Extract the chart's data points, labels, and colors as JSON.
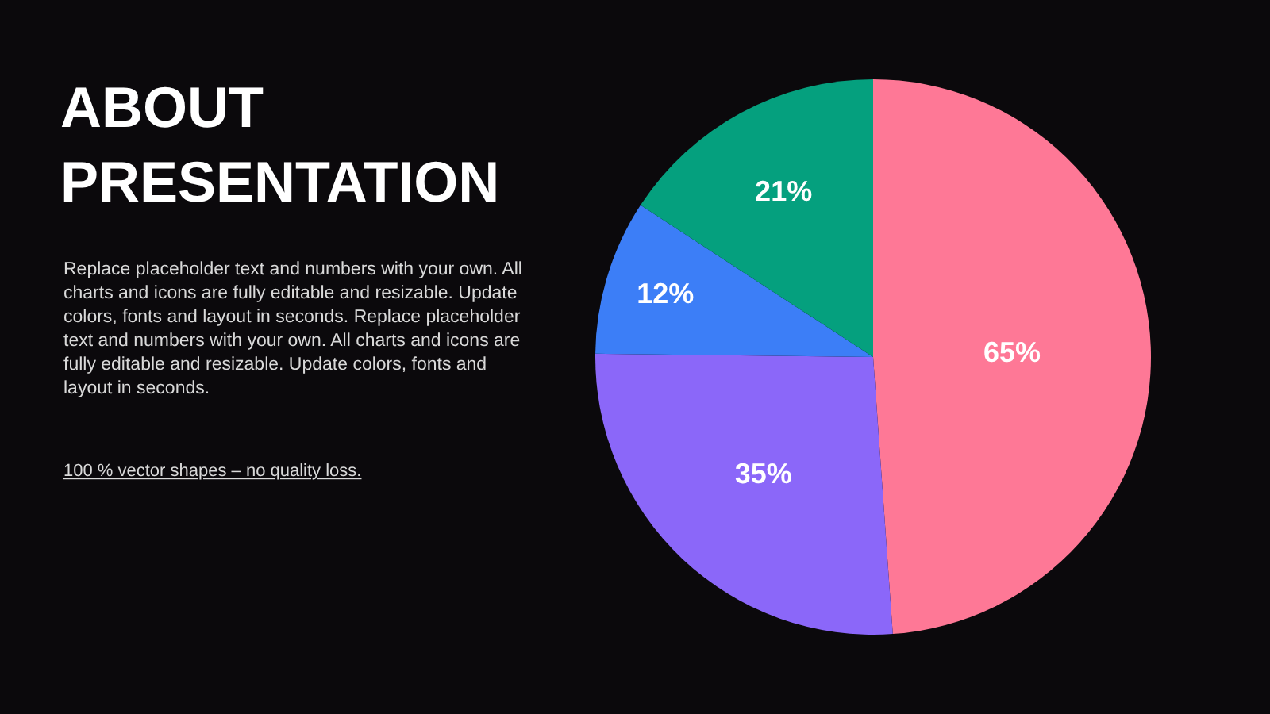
{
  "chart_data": {
    "type": "pie",
    "title": "ABOUT PRESENTATION",
    "categories": [
      null,
      null,
      null,
      null
    ],
    "values": [
      65,
      35,
      12,
      21
    ],
    "colors": [
      "#fe7896",
      "#8b67f9",
      "#3c7ef7",
      "#05a07e"
    ],
    "value_labels": [
      "65%",
      "35%",
      "12%",
      "21%"
    ],
    "annotations": [
      "Replace placeholder text and numbers with your own. All charts and icons are fully editable and resizable. Update colors, fonts and layout in seconds. Replace placeholder text and numbers with your own. All charts and icons are fully editable and resizable. Update colors, fonts and layout in seconds.",
      "100 % vector shapes – no quality loss."
    ]
  }
}
